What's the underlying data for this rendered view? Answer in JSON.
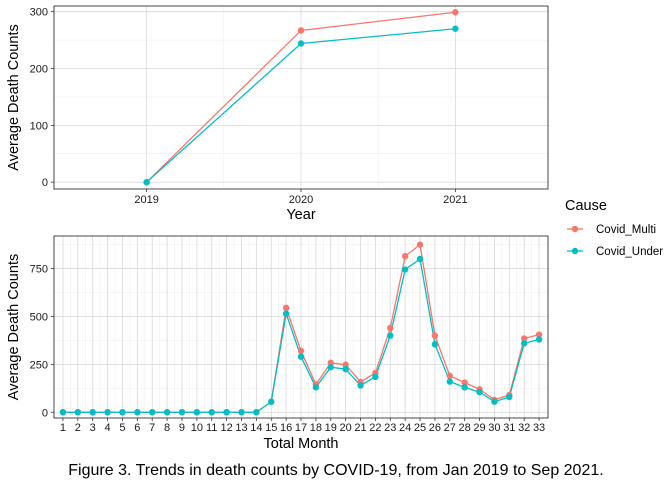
{
  "caption": "Figure 3. Trends in death counts by COVID-19, from Jan 2019 to Sep 2021.",
  "legend": {
    "title": "Cause",
    "items": [
      {
        "name": "Covid_Multi",
        "color": "#F8766D"
      },
      {
        "name": "Covid_Under",
        "color": "#00BFC4"
      }
    ]
  },
  "chart_data": [
    {
      "type": "line",
      "xlabel": "Year",
      "ylabel": "Average Death Counts",
      "x": [
        "2019",
        "2020",
        "2021"
      ],
      "ylim": [
        -12,
        310
      ],
      "yticks": [
        0,
        100,
        200,
        300
      ],
      "grid": true,
      "series": [
        {
          "name": "Covid_Multi",
          "color": "#F8766D",
          "values": [
            0,
            267,
            299
          ]
        },
        {
          "name": "Covid_Under",
          "color": "#00BFC4",
          "values": [
            0,
            244,
            270
          ]
        }
      ]
    },
    {
      "type": "line",
      "xlabel": "Total Month",
      "ylabel": "Average Death Counts",
      "x": [
        "1",
        "2",
        "3",
        "4",
        "5",
        "6",
        "7",
        "8",
        "9",
        "10",
        "11",
        "12",
        "13",
        "14",
        "15",
        "16",
        "17",
        "18",
        "19",
        "20",
        "21",
        "22",
        "23",
        "24",
        "25",
        "26",
        "27",
        "28",
        "29",
        "30",
        "31",
        "32",
        "33"
      ],
      "ylim": [
        -30,
        920
      ],
      "yticks": [
        0,
        250,
        500,
        750
      ],
      "grid": true,
      "series": [
        {
          "name": "Covid_Multi",
          "color": "#F8766D",
          "values": [
            0,
            0,
            0,
            0,
            0,
            0,
            0,
            0,
            0,
            0,
            0,
            0,
            0,
            0,
            55,
            545,
            320,
            145,
            258,
            248,
            158,
            205,
            440,
            815,
            875,
            400,
            190,
            155,
            120,
            65,
            90,
            385,
            405
          ]
        },
        {
          "name": "Covid_Under",
          "color": "#00BFC4",
          "values": [
            0,
            0,
            0,
            0,
            0,
            0,
            0,
            0,
            0,
            0,
            0,
            0,
            0,
            0,
            55,
            515,
            290,
            130,
            235,
            225,
            140,
            185,
            400,
            745,
            800,
            355,
            160,
            130,
            105,
            55,
            80,
            360,
            380
          ]
        }
      ]
    }
  ]
}
